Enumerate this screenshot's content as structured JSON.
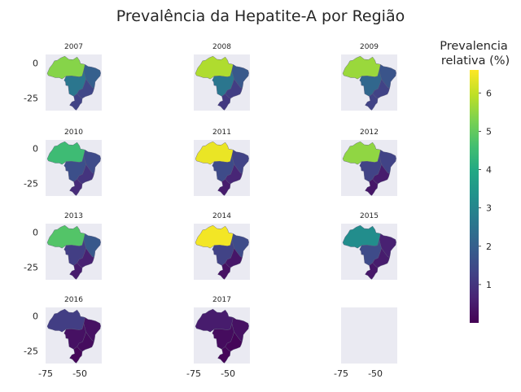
{
  "chart_data": {
    "type": "choropleth-small-multiples",
    "title": "Prevalência da Hepatite-A por Região",
    "colorbar": {
      "label_lines": [
        "Prevalencia",
        "relativa (%)"
      ],
      "colormap": "viridis",
      "range": [
        0,
        6.6
      ],
      "ticks": [
        1,
        2,
        3,
        4,
        5,
        6
      ]
    },
    "axis": {
      "x_ticks": [
        -75,
        -50
      ],
      "y_ticks": [
        0,
        -25
      ],
      "xlim": [
        -75,
        -34
      ],
      "ylim": [
        -34,
        6
      ]
    },
    "panels": [
      {
        "year": "2007",
        "regions": {
          "Norte": 5.4,
          "Centro-Oeste": 2.6,
          "Nordeste": 2.0,
          "Sudeste": 1.4,
          "Sul": 1.3
        }
      },
      {
        "year": "2008",
        "regions": {
          "Norte": 5.8,
          "Centro-Oeste": 2.6,
          "Nordeste": 1.8,
          "Sudeste": 1.2,
          "Sul": 1.1
        }
      },
      {
        "year": "2009",
        "regions": {
          "Norte": 5.6,
          "Centro-Oeste": 2.2,
          "Nordeste": 1.7,
          "Sudeste": 1.3,
          "Sul": 1.3
        }
      },
      {
        "year": "2010",
        "regions": {
          "Norte": 4.5,
          "Centro-Oeste": 1.6,
          "Nordeste": 1.5,
          "Sudeste": 1.0,
          "Sul": 0.8
        }
      },
      {
        "year": "2011",
        "regions": {
          "Norte": 6.4,
          "Centro-Oeste": 1.5,
          "Nordeste": 1.3,
          "Sudeste": 0.7,
          "Sul": 0.5
        }
      },
      {
        "year": "2012",
        "regions": {
          "Norte": 5.5,
          "Centro-Oeste": 1.3,
          "Nordeste": 1.3,
          "Sudeste": 0.5,
          "Sul": 0.4
        }
      },
      {
        "year": "2013",
        "regions": {
          "Norte": 4.8,
          "Centro-Oeste": 1.2,
          "Nordeste": 1.8,
          "Sudeste": 0.6,
          "Sul": 0.5
        }
      },
      {
        "year": "2014",
        "regions": {
          "Norte": 6.5,
          "Centro-Oeste": 1.3,
          "Nordeste": 1.5,
          "Sudeste": 0.4,
          "Sul": 0.3
        }
      },
      {
        "year": "2015",
        "regions": {
          "Norte": 3.2,
          "Centro-Oeste": 1.5,
          "Nordeste": 0.6,
          "Sudeste": 0.5,
          "Sul": 0.4
        }
      },
      {
        "year": "2016",
        "regions": {
          "Norte": 1.2,
          "Centro-Oeste": 0.3,
          "Nordeste": 0.3,
          "Sudeste": 0.2,
          "Sul": 0.1
        }
      },
      {
        "year": "2017",
        "regions": {
          "Norte": 0.5,
          "Centro-Oeste": 0.2,
          "Nordeste": 0.3,
          "Sudeste": 0.1,
          "Sul": 0.1
        }
      }
    ]
  }
}
